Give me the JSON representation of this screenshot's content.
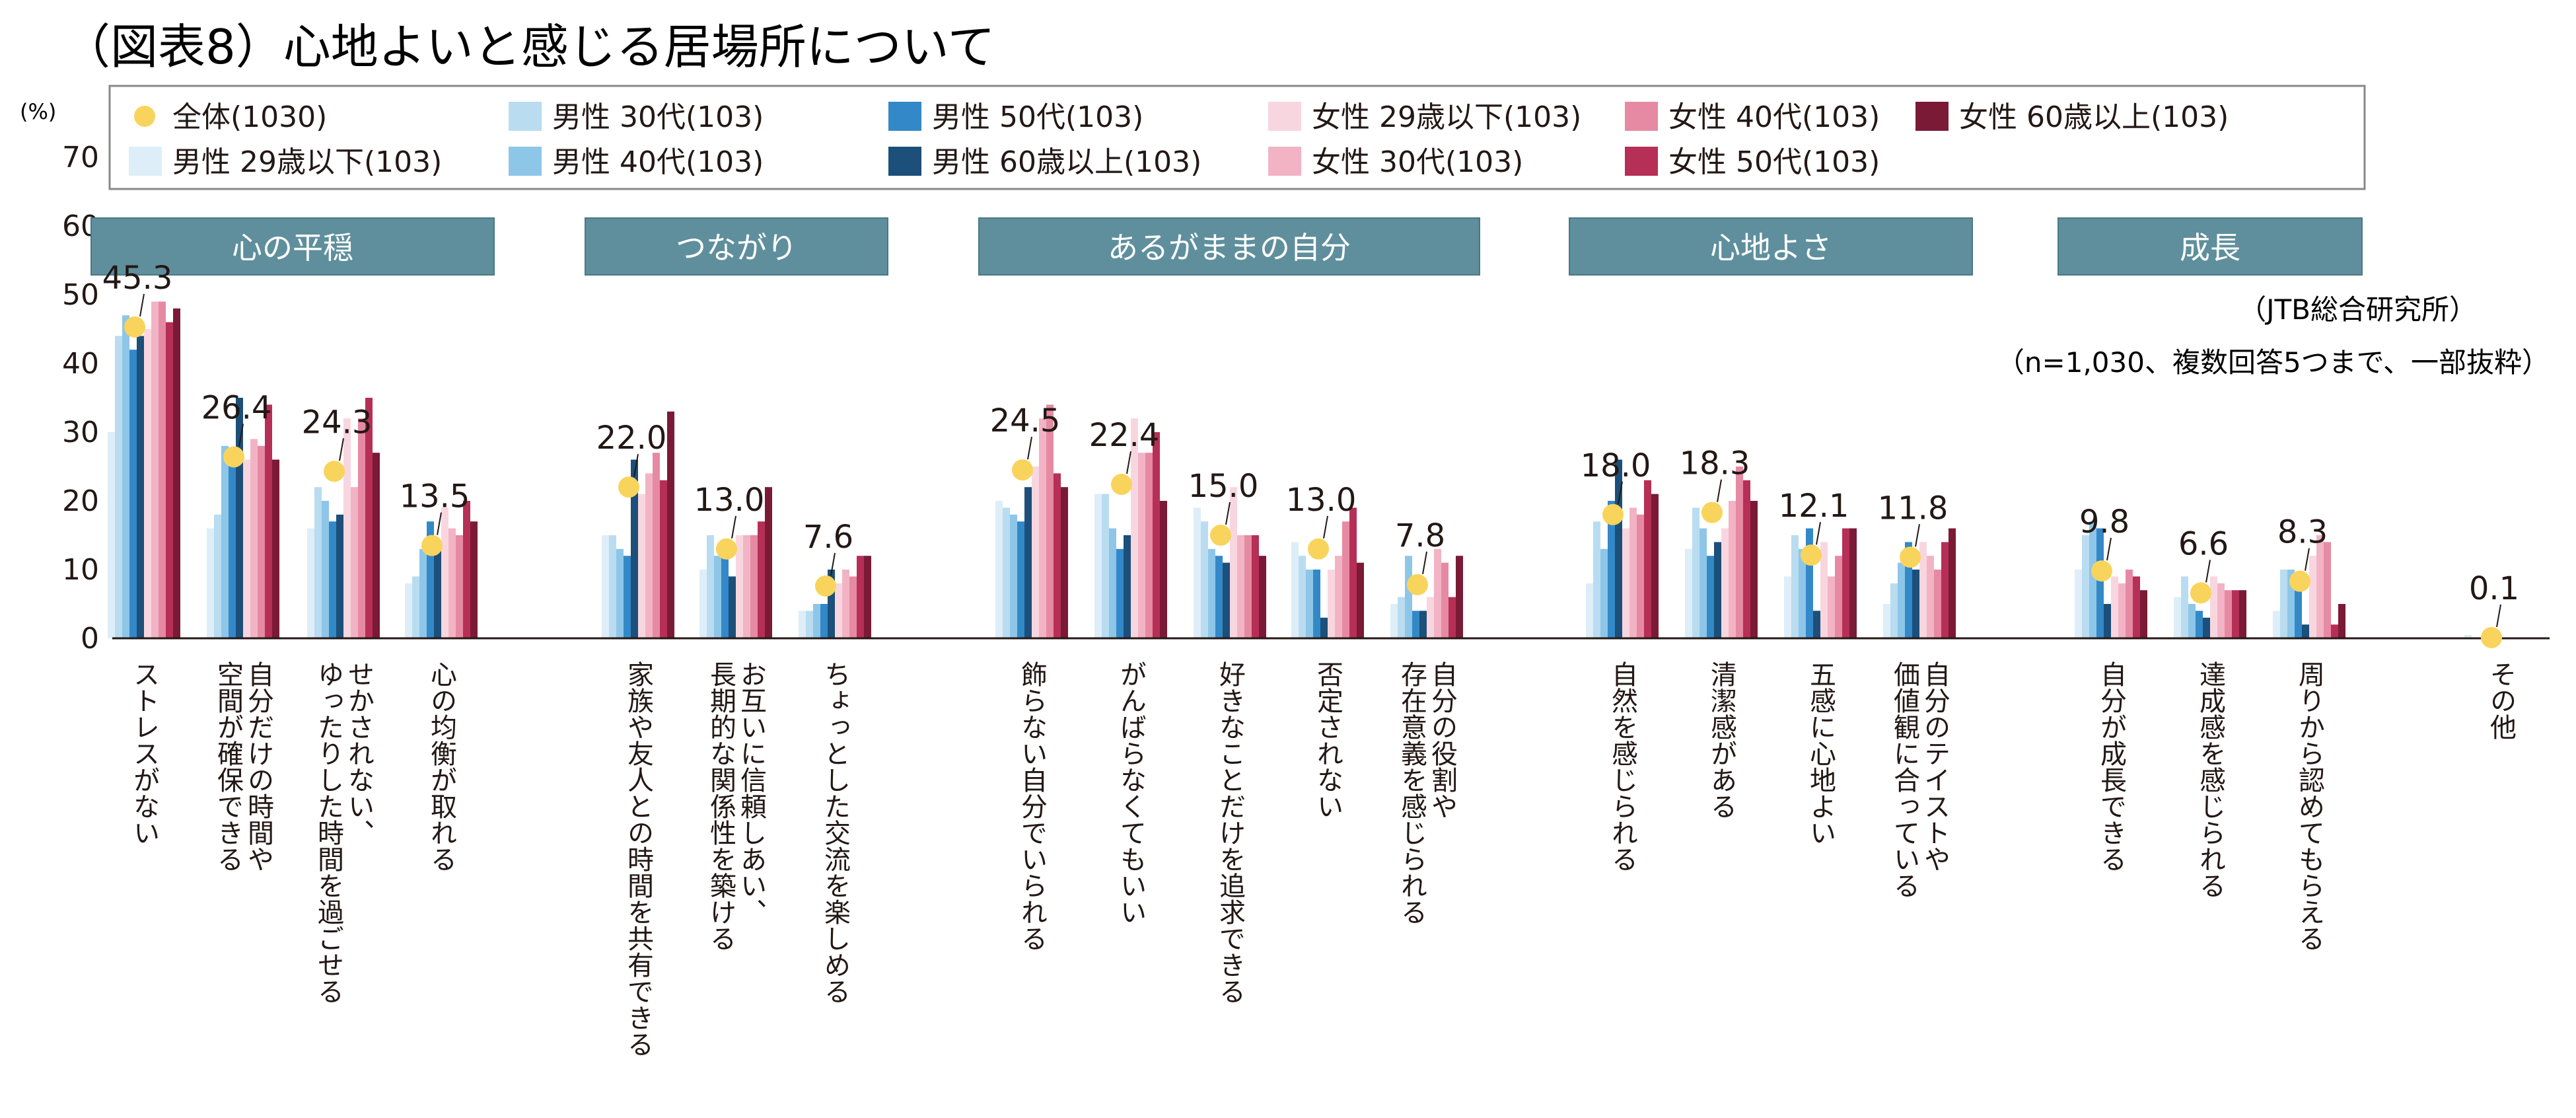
{
  "title": "（図表8）心地よいと感じる居場所について",
  "source": "（JTB総合研究所）",
  "note": "（n=1,030、複数回答5つまで、一部抜粋）",
  "chart_data": {
    "type": "bar",
    "ylabel": "(%)",
    "ylim": [
      0,
      70
    ],
    "yticks": [
      0,
      10,
      20,
      30,
      40,
      50,
      60,
      70
    ],
    "legend_position": "top",
    "total_label": "全体(1030)",
    "total_color": "#f9d45c",
    "groups": [
      {
        "label": "心の平穏",
        "categories": [
          0,
          1,
          2,
          3
        ]
      },
      {
        "label": "つながり",
        "categories": [
          4,
          5,
          6
        ]
      },
      {
        "label": "あるがままの自分",
        "categories": [
          7,
          8,
          9,
          10,
          11
        ]
      },
      {
        "label": "心地よさ",
        "categories": [
          12,
          13,
          14,
          15
        ]
      },
      {
        "label": "成長",
        "categories": [
          16,
          17,
          18
        ]
      }
    ],
    "categories": [
      "ストレスがない",
      "自分だけの時間や\n空間が確保できる",
      "せかされない、\nゆったりした時間を過ごせる",
      "心の均衡が取れる",
      "家族や友人との時間を共有できる",
      "お互いに信頼しあい、\n長期的な関係性を築ける",
      "ちょっとした交流を楽しめる",
      "飾らない自分でいられる",
      "がんばらなくてもいい",
      "好きなことだけを追求できる",
      "否定されない",
      "自分の役割や\n存在意義を感じられる",
      "自然を感じられる",
      "清潔感がある",
      "五感に心地よい",
      "自分のテイストや\n価値観に合っている",
      "自分が成長できる",
      "達成感を感じられる",
      "周りから認めてもらえる",
      "その他"
    ],
    "total": [
      45.3,
      26.4,
      24.3,
      13.5,
      22.0,
      13.0,
      7.6,
      24.5,
      22.4,
      15.0,
      13.0,
      7.8,
      18.0,
      18.3,
      12.1,
      11.8,
      9.8,
      6.6,
      8.3,
      0.1
    ],
    "total_labels": [
      "45.3",
      "26.4",
      "24.3",
      "13.5",
      "22.0",
      "13.0",
      "7.6",
      "24.5",
      "22.4",
      "15.0",
      "13.0",
      "7.8",
      "18.0",
      "18.3",
      "12.1",
      "11.8",
      "9.8",
      "6.6",
      "8.3",
      "0.1"
    ],
    "series": [
      {
        "name": "男性 29歳以下(103)",
        "color": "#ddeef8",
        "values": [
          30,
          16,
          16,
          8,
          15,
          10,
          4,
          20,
          21,
          19,
          14,
          5,
          8,
          13,
          9,
          5,
          10,
          6,
          4,
          0.5
        ]
      },
      {
        "name": "男性 30代(103)",
        "color": "#b9dcf1",
        "values": [
          44,
          18,
          22,
          9,
          15,
          15,
          4,
          19,
          21,
          17,
          12,
          6,
          17,
          19,
          15,
          8,
          15,
          9,
          10,
          0
        ]
      },
      {
        "name": "男性 40代(103)",
        "color": "#8ec6e8",
        "values": [
          47,
          28,
          20,
          13,
          13,
          12,
          5,
          18,
          16,
          13,
          10,
          12,
          13,
          16,
          13,
          11,
          17,
          5,
          10,
          0
        ]
      },
      {
        "name": "男性 50代(103)",
        "color": "#3388c8",
        "values": [
          42,
          27,
          17,
          17,
          12,
          14,
          5,
          17,
          13,
          12,
          10,
          4,
          20,
          12,
          16,
          14,
          16,
          4,
          9,
          0
        ]
      },
      {
        "name": "男性 60歳以上(103)",
        "color": "#1c4f79",
        "values": [
          44,
          35,
          18,
          14,
          26,
          9,
          10,
          22,
          15,
          11,
          3,
          4,
          26,
          14,
          4,
          10,
          5,
          3,
          2,
          0
        ]
      },
      {
        "name": "女性 29歳以下(103)",
        "color": "#f8d6e0",
        "values": [
          45,
          26,
          32,
          19,
          21,
          15,
          8,
          25,
          32,
          22,
          10,
          6,
          16,
          16,
          14,
          14,
          9,
          9,
          12,
          0
        ]
      },
      {
        "name": "女性 30代(103)",
        "color": "#f2b3c5",
        "values": [
          49,
          29,
          22,
          16,
          24,
          15,
          10,
          32,
          27,
          15,
          12,
          13,
          19,
          20,
          9,
          12,
          8,
          8,
          15,
          0
        ]
      },
      {
        "name": "女性 40代(103)",
        "color": "#e68aa3",
        "values": [
          49,
          28,
          32,
          15,
          27,
          15,
          9,
          34,
          27,
          15,
          17,
          11,
          18,
          25,
          12,
          10,
          10,
          7,
          14,
          0
        ]
      },
      {
        "name": "女性 50代(103)",
        "color": "#b62f56",
        "values": [
          46,
          34,
          35,
          20,
          23,
          17,
          12,
          24,
          30,
          15,
          19,
          6,
          23,
          23,
          16,
          14,
          9,
          7,
          2,
          0
        ]
      },
      {
        "name": "女性 60歳以上(103)",
        "color": "#7a1a36",
        "values": [
          48,
          26,
          27,
          17,
          33,
          22,
          12,
          22,
          20,
          12,
          11,
          12,
          21,
          20,
          16,
          16,
          7,
          7,
          5,
          0
        ]
      }
    ]
  }
}
